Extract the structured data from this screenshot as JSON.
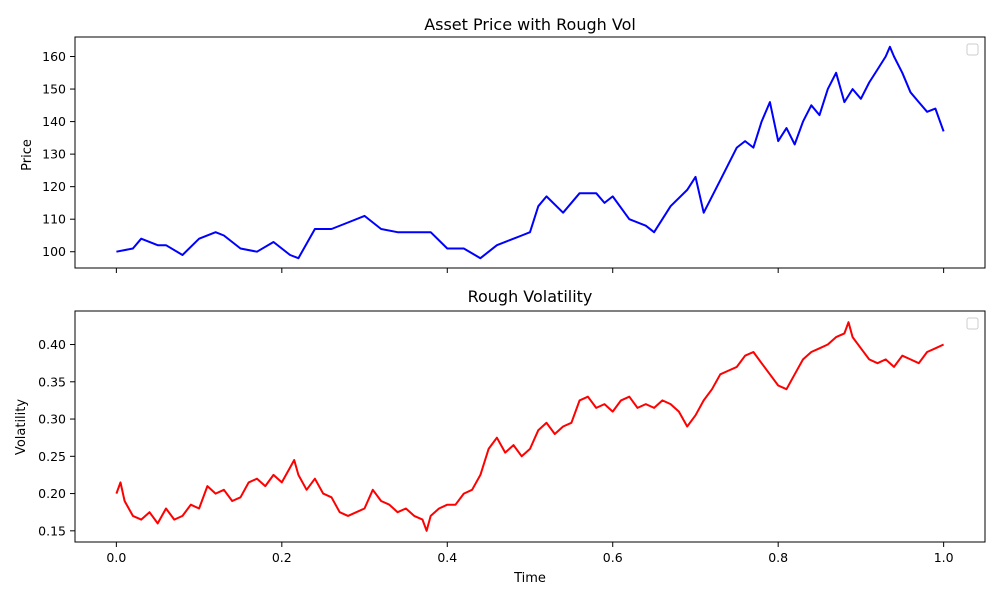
{
  "chart_data": [
    {
      "type": "line",
      "title": "Asset Price with Rough Vol",
      "ylabel": "Price",
      "xlabel": "",
      "xlim": [
        -0.05,
        1.05
      ],
      "ylim": [
        95,
        166
      ],
      "xticks": [
        0.0,
        0.2,
        0.4,
        0.6,
        0.8,
        1.0
      ],
      "xtick_labels_shown": false,
      "yticks": [
        100,
        110,
        120,
        130,
        140,
        150,
        160
      ],
      "ytick_labels": [
        "100",
        "110",
        "120",
        "130",
        "140",
        "150",
        "160"
      ],
      "legend": "top-right, empty",
      "grid": false,
      "series": [
        {
          "color": "#0000ff",
          "x": [
            0.0,
            0.02,
            0.03,
            0.05,
            0.06,
            0.08,
            0.1,
            0.12,
            0.13,
            0.15,
            0.17,
            0.19,
            0.21,
            0.22,
            0.24,
            0.26,
            0.28,
            0.3,
            0.32,
            0.34,
            0.36,
            0.38,
            0.4,
            0.42,
            0.44,
            0.46,
            0.48,
            0.49,
            0.5,
            0.51,
            0.52,
            0.54,
            0.56,
            0.58,
            0.59,
            0.6,
            0.62,
            0.64,
            0.65,
            0.67,
            0.69,
            0.7,
            0.71,
            0.73,
            0.75,
            0.76,
            0.77,
            0.78,
            0.79,
            0.8,
            0.81,
            0.82,
            0.83,
            0.84,
            0.85,
            0.86,
            0.87,
            0.88,
            0.89,
            0.9,
            0.91,
            0.92,
            0.93,
            0.935,
            0.94,
            0.95,
            0.96,
            0.97,
            0.98,
            0.99,
            1.0
          ],
          "y": [
            100,
            101,
            104,
            102,
            102,
            99,
            104,
            106,
            105,
            101,
            100,
            103,
            99,
            98,
            107,
            107,
            109,
            111,
            107,
            106,
            106,
            106,
            101,
            101,
            98,
            102,
            104,
            105,
            106,
            114,
            117,
            112,
            118,
            118,
            115,
            117,
            110,
            108,
            106,
            114,
            119,
            123,
            112,
            122,
            132,
            134,
            132,
            140,
            146,
            134,
            138,
            133,
            140,
            145,
            142,
            150,
            155,
            146,
            150,
            147,
            152,
            156,
            160,
            163,
            160,
            155,
            149,
            146,
            143,
            144,
            137
          ]
        }
      ]
    },
    {
      "type": "line",
      "title": "Rough Volatility",
      "ylabel": "Volatility",
      "xlabel": "Time",
      "xlim": [
        -0.05,
        1.05
      ],
      "ylim": [
        0.135,
        0.445
      ],
      "xticks": [
        0.0,
        0.2,
        0.4,
        0.6,
        0.8,
        1.0
      ],
      "xtick_labels": [
        "0.0",
        "0.2",
        "0.4",
        "0.6",
        "0.8",
        "1.0"
      ],
      "yticks": [
        0.15,
        0.2,
        0.25,
        0.3,
        0.35,
        0.4
      ],
      "ytick_labels": [
        "0.15",
        "0.20",
        "0.25",
        "0.30",
        "0.35",
        "0.40"
      ],
      "legend": "top-right, empty",
      "grid": false,
      "series": [
        {
          "color": "#ff0000",
          "x": [
            0.0,
            0.005,
            0.01,
            0.02,
            0.03,
            0.04,
            0.05,
            0.06,
            0.07,
            0.08,
            0.09,
            0.1,
            0.11,
            0.12,
            0.13,
            0.14,
            0.15,
            0.16,
            0.17,
            0.18,
            0.19,
            0.2,
            0.21,
            0.215,
            0.22,
            0.23,
            0.24,
            0.25,
            0.26,
            0.27,
            0.28,
            0.29,
            0.3,
            0.31,
            0.32,
            0.33,
            0.34,
            0.35,
            0.36,
            0.37,
            0.375,
            0.38,
            0.39,
            0.4,
            0.41,
            0.42,
            0.43,
            0.44,
            0.45,
            0.46,
            0.47,
            0.48,
            0.49,
            0.5,
            0.51,
            0.52,
            0.53,
            0.54,
            0.55,
            0.56,
            0.57,
            0.58,
            0.59,
            0.6,
            0.61,
            0.62,
            0.63,
            0.64,
            0.65,
            0.66,
            0.67,
            0.68,
            0.69,
            0.7,
            0.71,
            0.72,
            0.73,
            0.74,
            0.75,
            0.76,
            0.77,
            0.78,
            0.79,
            0.8,
            0.81,
            0.82,
            0.83,
            0.84,
            0.85,
            0.86,
            0.87,
            0.88,
            0.885,
            0.89,
            0.9,
            0.91,
            0.92,
            0.93,
            0.94,
            0.95,
            0.96,
            0.97,
            0.98,
            0.99,
            1.0
          ],
          "y": [
            0.2,
            0.215,
            0.19,
            0.17,
            0.165,
            0.175,
            0.16,
            0.18,
            0.165,
            0.17,
            0.185,
            0.18,
            0.21,
            0.2,
            0.205,
            0.19,
            0.195,
            0.215,
            0.22,
            0.21,
            0.225,
            0.215,
            0.235,
            0.245,
            0.225,
            0.205,
            0.22,
            0.2,
            0.195,
            0.175,
            0.17,
            0.175,
            0.18,
            0.205,
            0.19,
            0.185,
            0.175,
            0.18,
            0.17,
            0.165,
            0.15,
            0.17,
            0.18,
            0.185,
            0.185,
            0.2,
            0.205,
            0.225,
            0.26,
            0.275,
            0.255,
            0.265,
            0.25,
            0.26,
            0.285,
            0.295,
            0.28,
            0.29,
            0.295,
            0.325,
            0.33,
            0.315,
            0.32,
            0.31,
            0.325,
            0.33,
            0.315,
            0.32,
            0.315,
            0.325,
            0.32,
            0.31,
            0.29,
            0.305,
            0.325,
            0.34,
            0.36,
            0.365,
            0.37,
            0.385,
            0.39,
            0.375,
            0.36,
            0.345,
            0.34,
            0.36,
            0.38,
            0.39,
            0.395,
            0.4,
            0.41,
            0.415,
            0.43,
            0.41,
            0.395,
            0.38,
            0.375,
            0.38,
            0.37,
            0.385,
            0.38,
            0.375,
            0.39,
            0.395,
            0.4
          ]
        }
      ]
    }
  ]
}
